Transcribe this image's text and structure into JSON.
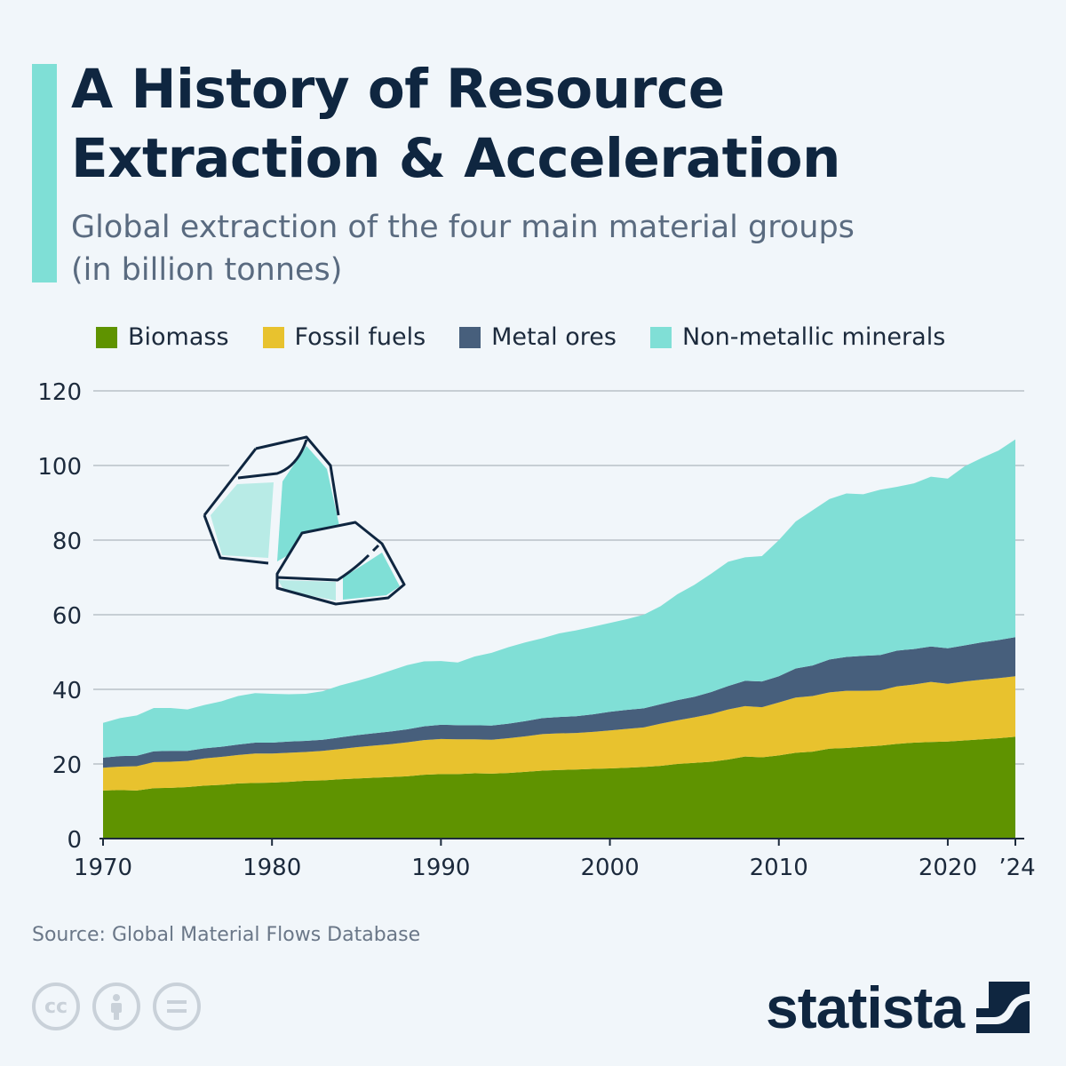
{
  "header": {
    "title_line1": "A History of Resource",
    "title_line2": "Extraction & Acceleration",
    "subtitle_line1": "Global extraction of the four main material groups",
    "subtitle_line2": "(in billion tonnes)"
  },
  "colors": {
    "background": "#f1f6fa",
    "accent": "#7fdfd6",
    "biomass": "#5f9300",
    "fossil_fuels": "#e8c22e",
    "metal_ores": "#475f7c",
    "non_metallic_minerals": "#80dfd6"
  },
  "chart_data": {
    "type": "area",
    "stacked": true,
    "title": "A History of Resource Extraction & Acceleration",
    "ylabel": "",
    "xlabel": "",
    "ylim": [
      0,
      120
    ],
    "yticks": [
      "0",
      "20",
      "40",
      "60",
      "80",
      "100",
      "120"
    ],
    "xticks": [
      "1970",
      "1980",
      "1990",
      "2000",
      "2010",
      "2020",
      "’24"
    ],
    "grid": true,
    "legend": "top",
    "x": [
      1970,
      1971,
      1972,
      1973,
      1974,
      1975,
      1976,
      1977,
      1978,
      1979,
      1980,
      1981,
      1982,
      1983,
      1984,
      1985,
      1986,
      1987,
      1988,
      1989,
      1990,
      1991,
      1992,
      1993,
      1994,
      1995,
      1996,
      1997,
      1998,
      1999,
      2000,
      2001,
      2002,
      2003,
      2004,
      2005,
      2006,
      2007,
      2008,
      2009,
      2010,
      2011,
      2012,
      2013,
      2014,
      2015,
      2016,
      2017,
      2018,
      2019,
      2020,
      2021,
      2022,
      2023,
      2024
    ],
    "series": [
      {
        "name": "Biomass",
        "color": "#5f9300",
        "values": [
          12.9,
          13.0,
          12.9,
          13.5,
          13.6,
          13.8,
          14.2,
          14.4,
          14.8,
          14.9,
          15.0,
          15.2,
          15.5,
          15.6,
          15.9,
          16.1,
          16.3,
          16.5,
          16.7,
          17.1,
          17.3,
          17.3,
          17.5,
          17.4,
          17.6,
          17.9,
          18.2,
          18.4,
          18.5,
          18.7,
          18.8,
          19.0,
          19.2,
          19.5,
          20.0,
          20.3,
          20.6,
          21.2,
          22.0,
          21.8,
          22.3,
          23.0,
          23.3,
          24.1,
          24.3,
          24.6,
          24.9,
          25.4,
          25.7,
          25.9,
          26.0,
          26.3,
          26.6,
          26.9,
          27.3
        ]
      },
      {
        "name": "Fossil fuels",
        "color": "#e8c22e",
        "values": [
          6.1,
          6.3,
          6.5,
          7.0,
          7.0,
          7.0,
          7.3,
          7.5,
          7.6,
          7.9,
          7.8,
          7.8,
          7.7,
          7.9,
          8.1,
          8.4,
          8.6,
          8.8,
          9.1,
          9.3,
          9.4,
          9.3,
          9.1,
          9.1,
          9.3,
          9.5,
          9.8,
          9.8,
          9.8,
          9.9,
          10.2,
          10.4,
          10.6,
          11.3,
          11.7,
          12.2,
          12.8,
          13.4,
          13.5,
          13.4,
          14.2,
          14.8,
          14.9,
          15.1,
          15.3,
          15.0,
          14.8,
          15.4,
          15.6,
          16.1,
          15.5,
          15.8,
          16.0,
          16.1,
          16.2
        ]
      },
      {
        "name": "Metal ores",
        "color": "#475f7c",
        "values": [
          2.7,
          2.8,
          2.8,
          2.9,
          2.9,
          2.7,
          2.7,
          2.7,
          2.8,
          2.9,
          2.9,
          3.0,
          3.0,
          3.0,
          3.1,
          3.2,
          3.3,
          3.4,
          3.5,
          3.7,
          3.8,
          3.8,
          3.8,
          3.8,
          3.9,
          4.1,
          4.3,
          4.4,
          4.5,
          4.7,
          5.0,
          5.1,
          5.1,
          5.2,
          5.4,
          5.5,
          5.9,
          6.3,
          6.8,
          6.9,
          7.0,
          7.8,
          8.2,
          8.8,
          9.1,
          9.4,
          9.5,
          9.6,
          9.5,
          9.5,
          9.5,
          9.7,
          10.0,
          10.2,
          10.5
        ]
      },
      {
        "name": "Non-metallic minerals",
        "color": "#80dfd6",
        "values": [
          9.3,
          10.2,
          10.8,
          11.6,
          11.5,
          11.1,
          11.6,
          12.2,
          13.0,
          13.3,
          13.1,
          12.7,
          12.6,
          13.0,
          13.9,
          14.5,
          15.3,
          16.3,
          17.2,
          17.4,
          17.1,
          16.8,
          18.4,
          19.5,
          20.5,
          21.1,
          21.4,
          22.4,
          23.0,
          23.5,
          23.8,
          24.3,
          25.1,
          26.3,
          28.4,
          30.0,
          31.7,
          33.3,
          33.1,
          33.6,
          36.5,
          39.4,
          41.6,
          43.0,
          43.8,
          43.3,
          44.3,
          43.9,
          44.4,
          45.5,
          45.5,
          48.0,
          49.4,
          50.8,
          53.0
        ]
      }
    ]
  },
  "legend": {
    "items": [
      "Biomass",
      "Fossil fuels",
      "Metal ores",
      "Non-metallic minerals"
    ]
  },
  "footer": {
    "source": "Source: Global Material Flows Database",
    "logo": "statista",
    "cc_icons": [
      "cc-icon",
      "attribution-icon",
      "no-derivatives-icon"
    ]
  }
}
